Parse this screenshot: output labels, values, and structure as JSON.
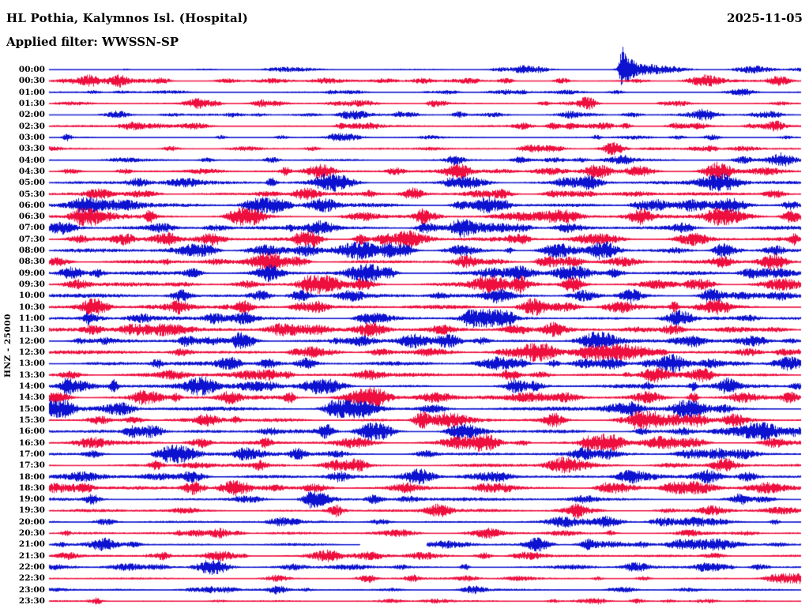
{
  "header": {
    "title": "HL Pothia, Kalymnos Isl. (Hospital)",
    "date": "2025-11-05",
    "filter": "Applied filter: WWSSN-SP"
  },
  "chart_data": {
    "type": "line",
    "subtype": "helicorder-seismogram",
    "station": "HL Pothia, Kalymnos Isl. (Hospital)",
    "date": "2025-11-05",
    "filter": "WWSSN-SP",
    "ylabel": "HNZ - 25000",
    "row_interval_minutes": 30,
    "legend": "alternating blue/red half-hour traces, 00:00 to 23:30",
    "colors": {
      "blue": "#0c12cf",
      "red": "#ee0f3e"
    },
    "rows": [
      {
        "t": "00:00",
        "c": "blue",
        "base": 1.0,
        "events": [
          [
            0.762,
            22,
            0.008
          ],
          [
            0.77,
            12,
            0.02
          ],
          [
            0.79,
            6,
            0.045
          ],
          [
            0.83,
            3.5,
            0.05
          ],
          [
            0.93,
            3,
            0.04
          ],
          [
            0.6,
            2,
            0.03
          ]
        ]
      },
      {
        "t": "00:30",
        "c": "red",
        "base": 1.4,
        "events": [
          [
            0.05,
            4,
            0.03
          ],
          [
            0.09,
            5,
            0.04
          ],
          [
            0.607,
            3,
            0.02
          ],
          [
            0.87,
            4,
            0.04
          ],
          [
            0.97,
            6,
            0.03
          ]
        ]
      },
      {
        "t": "01:00",
        "c": "blue",
        "base": 1.0,
        "events": [
          [
            0.06,
            2,
            0.02
          ],
          [
            0.376,
            2,
            0.02
          ],
          [
            0.628,
            2.5,
            0.02
          ],
          [
            0.754,
            2.5,
            0.02
          ],
          [
            0.93,
            2,
            0.02
          ]
        ]
      },
      {
        "t": "01:30",
        "c": "red",
        "base": 1.2,
        "events": [
          [
            0.197,
            6,
            0.035
          ],
          [
            0.717,
            7,
            0.02
          ],
          [
            0.838,
            3,
            0.03
          ],
          [
            0.52,
            2.5,
            0.02
          ]
        ]
      },
      {
        "t": "02:00",
        "c": "blue",
        "base": 1.5,
        "events": [
          [
            0.092,
            2.5,
            0.02
          ],
          [
            0.481,
            2.5,
            0.02
          ],
          [
            0.775,
            3,
            0.03
          ],
          [
            0.964,
            3,
            0.02
          ],
          [
            0.28,
            2,
            0.02
          ]
        ]
      },
      {
        "t": "02:30",
        "c": "red",
        "base": 1.5,
        "events": [
          [
            0.11,
            5,
            0.035
          ],
          [
            0.67,
            4,
            0.02
          ],
          [
            0.833,
            3.5,
            0.025
          ],
          [
            0.969,
            4,
            0.02
          ]
        ]
      },
      {
        "t": "03:00",
        "c": "blue",
        "base": 1.1,
        "events": [
          [
            0.024,
            5,
            0.012
          ],
          [
            0.38,
            2,
            0.02
          ],
          [
            0.728,
            3,
            0.012
          ],
          [
            0.88,
            2.5,
            0.02
          ]
        ]
      },
      {
        "t": "03:30",
        "c": "red",
        "base": 1.3,
        "events": [
          [
            0.161,
            3,
            0.02
          ],
          [
            0.75,
            8,
            0.03
          ],
          [
            0.88,
            3,
            0.02
          ],
          [
            0.35,
            2.5,
            0.02
          ]
        ]
      },
      {
        "t": "04:00",
        "c": "blue",
        "base": 1.6,
        "events": [
          [
            0.21,
            3,
            0.02
          ],
          [
            0.539,
            4,
            0.025
          ],
          [
            0.707,
            3,
            0.02
          ],
          [
            0.922,
            4,
            0.025
          ]
        ]
      },
      {
        "t": "04:30",
        "c": "red",
        "base": 2.0,
        "events": [
          [
            0.36,
            8,
            0.035
          ],
          [
            0.55,
            5,
            0.03
          ],
          [
            0.73,
            9,
            0.035
          ],
          [
            0.89,
            8,
            0.035
          ],
          [
            0.1,
            3,
            0.02
          ]
        ]
      },
      {
        "t": "05:00",
        "c": "blue",
        "base": 2.4,
        "events": [
          [
            0.119,
            5,
            0.03
          ],
          [
            0.37,
            8,
            0.04
          ],
          [
            0.717,
            6,
            0.03
          ],
          [
            0.9,
            8,
            0.04
          ]
        ]
      },
      {
        "t": "05:30",
        "c": "red",
        "base": 2.4,
        "events": [
          [
            0.061,
            4,
            0.03
          ],
          [
            0.344,
            6,
            0.03
          ],
          [
            0.481,
            4,
            0.025
          ],
          [
            0.67,
            4,
            0.03
          ],
          [
            0.964,
            5,
            0.03
          ]
        ]
      },
      {
        "t": "06:00",
        "c": "blue",
        "base": 2.9,
        "events": [
          [
            0.05,
            6,
            0.04
          ],
          [
            0.281,
            5,
            0.03
          ],
          [
            0.36,
            7,
            0.04
          ],
          [
            0.586,
            4,
            0.03
          ],
          [
            0.786,
            5,
            0.03
          ],
          [
            0.985,
            5,
            0.02
          ]
        ]
      },
      {
        "t": "06:30",
        "c": "red",
        "base": 2.9,
        "events": [
          [
            0.06,
            7,
            0.05
          ],
          [
            0.271,
            5,
            0.03
          ],
          [
            0.502,
            6,
            0.03
          ],
          [
            0.786,
            6,
            0.03
          ],
          [
            0.985,
            7,
            0.02
          ]
        ]
      },
      {
        "t": "07:00",
        "c": "blue",
        "base": 2.9,
        "events": [
          [
            0.36,
            8,
            0.04
          ],
          [
            0.544,
            4,
            0.03
          ],
          [
            0.843,
            5,
            0.03
          ],
          [
            0.15,
            4,
            0.03
          ]
        ]
      },
      {
        "t": "07:30",
        "c": "red",
        "base": 2.9,
        "events": [
          [
            0.04,
            4,
            0.03
          ],
          [
            0.349,
            6,
            0.03
          ],
          [
            0.855,
            7,
            0.04
          ],
          [
            0.62,
            4,
            0.03
          ]
        ]
      },
      {
        "t": "08:00",
        "c": "blue",
        "base": 2.9,
        "events": [
          [
            0.197,
            4,
            0.03
          ],
          [
            0.418,
            6,
            0.03
          ],
          [
            0.67,
            4,
            0.03
          ],
          [
            0.964,
            5,
            0.025
          ]
        ]
      },
      {
        "t": "08:30",
        "c": "red",
        "base": 2.5,
        "events": [
          [
            0.292,
            4,
            0.03
          ],
          [
            0.964,
            7,
            0.03
          ],
          [
            0.55,
            3.5,
            0.03
          ]
        ]
      },
      {
        "t": "09:00",
        "c": "blue",
        "base": 2.9,
        "events": [
          [
            0.029,
            5,
            0.03
          ],
          [
            0.292,
            6,
            0.035
          ],
          [
            0.586,
            4,
            0.03
          ],
          [
            0.933,
            6,
            0.03
          ]
        ]
      },
      {
        "t": "09:30",
        "c": "red",
        "base": 2.9,
        "events": [
          [
            0.35,
            9,
            0.035
          ],
          [
            0.597,
            5,
            0.03
          ],
          [
            0.87,
            6,
            0.03
          ]
        ]
      },
      {
        "t": "10:00",
        "c": "blue",
        "base": 2.9,
        "events": [
          [
            0.281,
            6,
            0.03
          ],
          [
            0.334,
            7,
            0.03
          ],
          [
            0.71,
            7,
            0.035
          ],
          [
            0.88,
            5,
            0.03
          ]
        ]
      },
      {
        "t": "10:30",
        "c": "red",
        "base": 2.9,
        "events": [
          [
            0.061,
            4,
            0.03
          ],
          [
            0.334,
            5,
            0.03
          ],
          [
            0.691,
            5,
            0.03
          ],
          [
            0.89,
            7,
            0.035
          ]
        ]
      },
      {
        "t": "11:00",
        "c": "blue",
        "base": 2.9,
        "events": [
          [
            0.585,
            8,
            0.05,
            1
          ],
          [
            0.84,
            6,
            0.03
          ],
          [
            0.42,
            4,
            0.03
          ]
        ]
      },
      {
        "t": "11:30",
        "c": "red",
        "base": 2.9,
        "events": [
          [
            0.355,
            5,
            0.03
          ],
          [
            0.523,
            5,
            0.03
          ],
          [
            0.628,
            4,
            0.03
          ],
          [
            0.828,
            6,
            0.03
          ]
        ]
      },
      {
        "t": "12:00",
        "c": "blue",
        "base": 2.9,
        "events": [
          [
            0.53,
            8,
            0.035
          ],
          [
            0.733,
            4,
            0.03
          ],
          [
            0.26,
            4,
            0.03
          ]
        ]
      },
      {
        "t": "12:30",
        "c": "red",
        "base": 2.7,
        "events": [
          [
            0.176,
            4,
            0.03
          ],
          [
            0.439,
            4,
            0.03
          ],
          [
            0.712,
            4,
            0.03
          ],
          [
            0.93,
            4,
            0.03
          ]
        ]
      },
      {
        "t": "13:00",
        "c": "blue",
        "base": 2.9,
        "events": [
          [
            0.24,
            8,
            0.035
          ],
          [
            0.712,
            4,
            0.03
          ],
          [
            0.838,
            5,
            0.03
          ],
          [
            0.88,
            5,
            0.03
          ]
        ]
      },
      {
        "t": "13:30",
        "c": "red",
        "base": 2.9,
        "events": [
          [
            0.029,
            4,
            0.03
          ],
          [
            0.805,
            8,
            0.035
          ],
          [
            0.87,
            5,
            0.03
          ]
        ]
      },
      {
        "t": "14:00",
        "c": "blue",
        "base": 2.9,
        "events": [
          [
            0.2,
            8,
            0.035
          ],
          [
            0.628,
            5,
            0.03
          ],
          [
            0.9,
            4,
            0.03
          ]
        ]
      },
      {
        "t": "14:30",
        "c": "red",
        "base": 2.9,
        "events": [
          [
            0.435,
            10,
            0.035
          ],
          [
            0.649,
            4,
            0.03
          ],
          [
            0.922,
            5,
            0.03
          ],
          [
            0.985,
            6,
            0.02
          ]
        ]
      },
      {
        "t": "15:00",
        "c": "blue",
        "base": 2.9,
        "events": [
          [
            0.39,
            8,
            0.035
          ],
          [
            0.849,
            5,
            0.03
          ],
          [
            0.1,
            4,
            0.03
          ]
        ]
      },
      {
        "t": "15:30",
        "c": "red",
        "base": 2.9,
        "events": [
          [
            0.113,
            4,
            0.03
          ],
          [
            0.67,
            5,
            0.03
          ],
          [
            0.79,
            8,
            0.025,
            1
          ],
          [
            0.912,
            6,
            0.03
          ]
        ]
      },
      {
        "t": "16:00",
        "c": "blue",
        "base": 2.9,
        "events": [
          [
            0.135,
            8,
            0.035
          ],
          [
            0.843,
            4,
            0.03
          ],
          [
            0.55,
            4,
            0.03
          ]
        ]
      },
      {
        "t": "16:30",
        "c": "red",
        "base": 2.7,
        "events": [
          [
            0.197,
            4,
            0.03
          ],
          [
            0.576,
            4,
            0.03
          ],
          [
            0.964,
            5,
            0.03
          ]
        ]
      },
      {
        "t": "17:00",
        "c": "blue",
        "base": 2.7,
        "events": [
          [
            0.26,
            5,
            0.03
          ],
          [
            0.744,
            5,
            0.03
          ],
          [
            0.5,
            4,
            0.03
          ]
        ]
      },
      {
        "t": "17:30",
        "c": "red",
        "base": 2.5,
        "events": [
          [
            0.376,
            4,
            0.03
          ],
          [
            0.681,
            4,
            0.03
          ],
          [
            0.9,
            3.5,
            0.03
          ]
        ]
      },
      {
        "t": "18:00",
        "c": "blue",
        "base": 2.5,
        "events": [
          [
            0.19,
            7,
            0.035
          ],
          [
            0.87,
            4,
            0.03
          ],
          [
            0.6,
            3.5,
            0.03
          ]
        ]
      },
      {
        "t": "18:30",
        "c": "red",
        "base": 2.4,
        "events": [
          [
            0.607,
            4,
            0.03
          ],
          [
            0.828,
            4,
            0.03
          ],
          [
            0.3,
            3.5,
            0.03
          ]
        ]
      },
      {
        "t": "19:00",
        "c": "blue",
        "base": 2.4,
        "events": [
          [
            0.36,
            6,
            0.035
          ],
          [
            0.712,
            4,
            0.03
          ],
          [
            0.95,
            3.5,
            0.03
          ]
        ]
      },
      {
        "t": "19:30",
        "c": "red",
        "base": 2.2,
        "events": [
          [
            0.52,
            5,
            0.03
          ],
          [
            0.88,
            3.5,
            0.03
          ],
          [
            0.18,
            3,
            0.03
          ]
        ]
      },
      {
        "t": "20:00",
        "c": "blue",
        "base": 2.0,
        "events": [
          [
            0.44,
            3.5,
            0.03
          ],
          [
            0.745,
            5,
            0.035
          ],
          [
            0.815,
            5,
            0.035
          ]
        ]
      },
      {
        "t": "20:30",
        "c": "red",
        "base": 2.0,
        "events": [
          [
            0.229,
            3.5,
            0.03
          ],
          [
            0.586,
            3.5,
            0.03
          ],
          [
            0.85,
            3,
            0.03
          ]
        ]
      },
      {
        "t": "21:00",
        "c": "blue",
        "base": 2.0,
        "gap": [
          0.413,
          0.502
        ],
        "events": [
          [
            0.653,
            7,
            0.03
          ],
          [
            0.88,
            4,
            0.03
          ],
          [
            0.07,
            3,
            0.03
          ]
        ]
      },
      {
        "t": "21:30",
        "c": "red",
        "base": 2.0,
        "events": [
          [
            0.024,
            4,
            0.025
          ],
          [
            0.376,
            3.5,
            0.03
          ],
          [
            0.885,
            3.5,
            0.03
          ]
        ]
      },
      {
        "t": "22:00",
        "c": "blue",
        "base": 1.8,
        "events": [
          [
            0.145,
            3,
            0.03
          ],
          [
            0.218,
            3,
            0.03
          ],
          [
            0.775,
            3,
            0.03
          ]
        ]
      },
      {
        "t": "22:30",
        "c": "red",
        "base": 1.5,
        "events": [
          [
            0.555,
            3,
            0.03
          ],
          [
            0.964,
            3,
            0.03
          ],
          [
            0.3,
            2.5,
            0.03
          ]
        ]
      },
      {
        "t": "23:00",
        "c": "blue",
        "base": 1.5,
        "events": [
          [
            0.303,
            2.5,
            0.03
          ],
          [
            0.565,
            3,
            0.03
          ],
          [
            0.765,
            3,
            0.03
          ]
        ]
      },
      {
        "t": "23:30",
        "c": "red",
        "base": 1.2,
        "events": [
          [
            0.061,
            2,
            0.02
          ],
          [
            0.67,
            2,
            0.02
          ],
          [
            0.88,
            2,
            0.02
          ]
        ]
      }
    ]
  }
}
